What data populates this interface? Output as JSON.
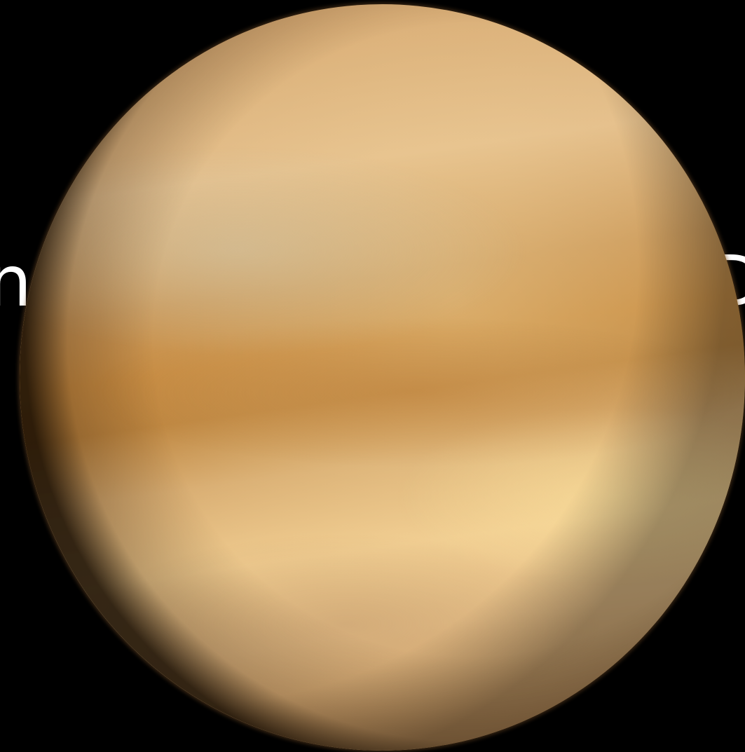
{
  "overlay": {
    "left_text": "np:",
    "right_text": "D"
  },
  "image": {
    "subject_icon": "planet-venus",
    "colors": {
      "background": "#000000",
      "planet_base": "#ddb47e",
      "planet_band": "#c68b42",
      "planet_highlight": "#f0cc90",
      "text": "#ffffff"
    }
  }
}
